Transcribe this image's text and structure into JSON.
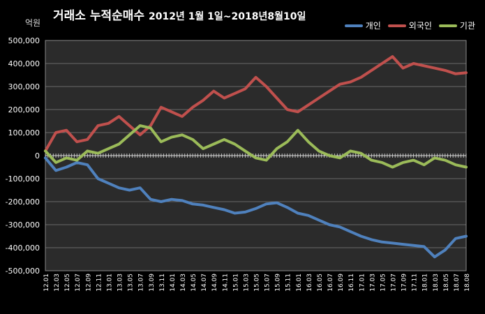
{
  "chart_data": {
    "type": "line",
    "title": "거래소  누적순매수",
    "subtitle": "2012년 1월 1일~2018년8월10일",
    "ylabel": "억원",
    "ylim": [
      -500000,
      500000
    ],
    "yticks": [
      500000,
      400000,
      300000,
      200000,
      100000,
      0,
      -100000,
      -200000,
      -300000,
      -400000,
      -500000
    ],
    "ytick_labels": [
      "500,000",
      "400,000",
      "300,000",
      "200,000",
      "100,000",
      "0",
      "-100,000",
      "-200,000",
      "-300,000",
      "-400,000",
      "-500,000"
    ],
    "grid": true,
    "legend_position": "top-right",
    "x": [
      "12.01",
      "12.03",
      "12.05",
      "12.07",
      "12.09",
      "12.11",
      "13.01",
      "13.03",
      "13.05",
      "13.07",
      "13.09",
      "13.11",
      "14.01",
      "14.03",
      "14.05",
      "14.07",
      "14.09",
      "14.11",
      "15.01",
      "15.03",
      "15.05",
      "15.07",
      "15.09",
      "15.11",
      "16.01",
      "16.03",
      "16.05",
      "16.07",
      "16.09",
      "16.11",
      "17.01",
      "17.03",
      "17.05",
      "17.07",
      "17.09",
      "17.11",
      "18.01",
      "18.03",
      "18.05",
      "18.07",
      "18.08"
    ],
    "series": [
      {
        "name": "개인",
        "color": "#4f81bd",
        "values": [
          -10000,
          -65000,
          -50000,
          -30000,
          -40000,
          -100000,
          -120000,
          -140000,
          -150000,
          -140000,
          -190000,
          -200000,
          -190000,
          -195000,
          -210000,
          -215000,
          -225000,
          -235000,
          -250000,
          -245000,
          -230000,
          -210000,
          -205000,
          -225000,
          -250000,
          -260000,
          -280000,
          -300000,
          -310000,
          -330000,
          -350000,
          -365000,
          -375000,
          -380000,
          -385000,
          -390000,
          -395000,
          -440000,
          -410000,
          -360000,
          -350000
        ]
      },
      {
        "name": "외국인",
        "color": "#c0504d",
        "values": [
          20000,
          100000,
          110000,
          60000,
          70000,
          130000,
          140000,
          170000,
          130000,
          90000,
          130000,
          210000,
          190000,
          170000,
          210000,
          240000,
          280000,
          250000,
          270000,
          290000,
          340000,
          300000,
          250000,
          200000,
          190000,
          220000,
          250000,
          280000,
          310000,
          320000,
          340000,
          370000,
          400000,
          430000,
          380000,
          400000,
          390000,
          380000,
          370000,
          355000,
          360000
        ]
      },
      {
        "name": "기관",
        "color": "#9bbb59",
        "values": [
          20000,
          -30000,
          -10000,
          -20000,
          20000,
          10000,
          30000,
          50000,
          90000,
          130000,
          120000,
          60000,
          80000,
          90000,
          70000,
          30000,
          50000,
          70000,
          50000,
          20000,
          -10000,
          -20000,
          30000,
          60000,
          110000,
          60000,
          20000,
          0,
          -10000,
          20000,
          10000,
          -20000,
          -30000,
          -50000,
          -30000,
          -20000,
          -40000,
          -10000,
          -20000,
          -40000,
          -50000
        ]
      }
    ]
  }
}
